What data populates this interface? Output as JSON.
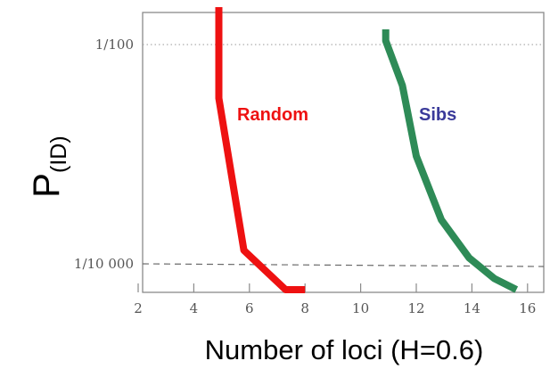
{
  "chart_data": {
    "type": "line",
    "xlabel": "Number of loci (H=0.6)",
    "ylabel_main": "P",
    "ylabel_sub": "(ID)",
    "xlim": [
      2,
      16
    ],
    "xticks": [
      2,
      4,
      6,
      8,
      10,
      12,
      14,
      16
    ],
    "xtick_labels": [
      "2",
      "4",
      "6",
      "8",
      "10",
      "12",
      "14",
      "16"
    ],
    "yscale": "log",
    "ylim": [
      5e-05,
      0.02
    ],
    "yticks": [
      0.01,
      0.0001
    ],
    "ytick_labels": [
      "1/100",
      "1/10 000"
    ],
    "reference_lines": [
      {
        "y": 0.01,
        "style": "dotted"
      },
      {
        "y": 0.0001,
        "style": "dashed"
      }
    ],
    "series": [
      {
        "name": "Random",
        "color": "#ee1111",
        "points": [
          [
            4.9,
            0.02
          ],
          [
            4.9,
            0.0029
          ],
          [
            5.8,
            0.000115
          ],
          [
            7.3,
            5e-05
          ],
          [
            8.0,
            5e-05
          ]
        ]
      },
      {
        "name": "Sibs",
        "color": "#2e8b57",
        "points": [
          [
            10.9,
            0.0125
          ],
          [
            10.9,
            0.0098
          ],
          [
            11.5,
            0.0038
          ],
          [
            12.0,
            0.00085
          ],
          [
            12.9,
            0.00022
          ],
          [
            13.9,
            9.8e-05
          ],
          [
            14.8,
            6.35e-05
          ],
          [
            15.6,
            5e-05
          ]
        ]
      }
    ]
  }
}
